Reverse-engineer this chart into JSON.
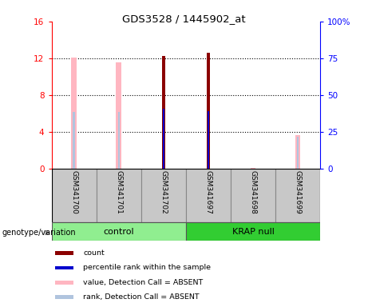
{
  "title": "GDS3528 / 1445902_at",
  "samples": [
    "GSM341700",
    "GSM341701",
    "GSM341702",
    "GSM341697",
    "GSM341698",
    "GSM341699"
  ],
  "ylim_left": [
    0,
    16
  ],
  "ylim_right": [
    0,
    100
  ],
  "yticks_left": [
    0,
    4,
    8,
    12,
    16
  ],
  "yticks_right": [
    0,
    25,
    50,
    75,
    100
  ],
  "ytick_labels_left": [
    "0",
    "4",
    "8",
    "12",
    "16"
  ],
  "ytick_labels_right": [
    "0",
    "25",
    "50",
    "75",
    "100%"
  ],
  "count_values": [
    0,
    0,
    12.3,
    12.6,
    0,
    0
  ],
  "rank_values": [
    0,
    0,
    6.5,
    6.3,
    0,
    0
  ],
  "absent_value_values": [
    12.1,
    11.6,
    0,
    0,
    0.1,
    3.7
  ],
  "absent_rank_values": [
    6.2,
    6.2,
    0,
    0,
    0,
    3.5
  ],
  "count_color": "#8B0000",
  "rank_color": "#0000CD",
  "absent_value_color": "#FFB6C1",
  "absent_rank_color": "#B0C4DE",
  "background_color": "#FFFFFF",
  "label_area_color": "#C8C8C8",
  "ctrl_color": "#90EE90",
  "krap_color": "#32CD32",
  "genotype_label": "genotype/variation",
  "legend_items": [
    {
      "label": "count",
      "color": "#8B0000"
    },
    {
      "label": "percentile rank within the sample",
      "color": "#0000CD"
    },
    {
      "label": "value, Detection Call = ABSENT",
      "color": "#FFB6C1"
    },
    {
      "label": "rank, Detection Call = ABSENT",
      "color": "#B0C4DE"
    }
  ]
}
